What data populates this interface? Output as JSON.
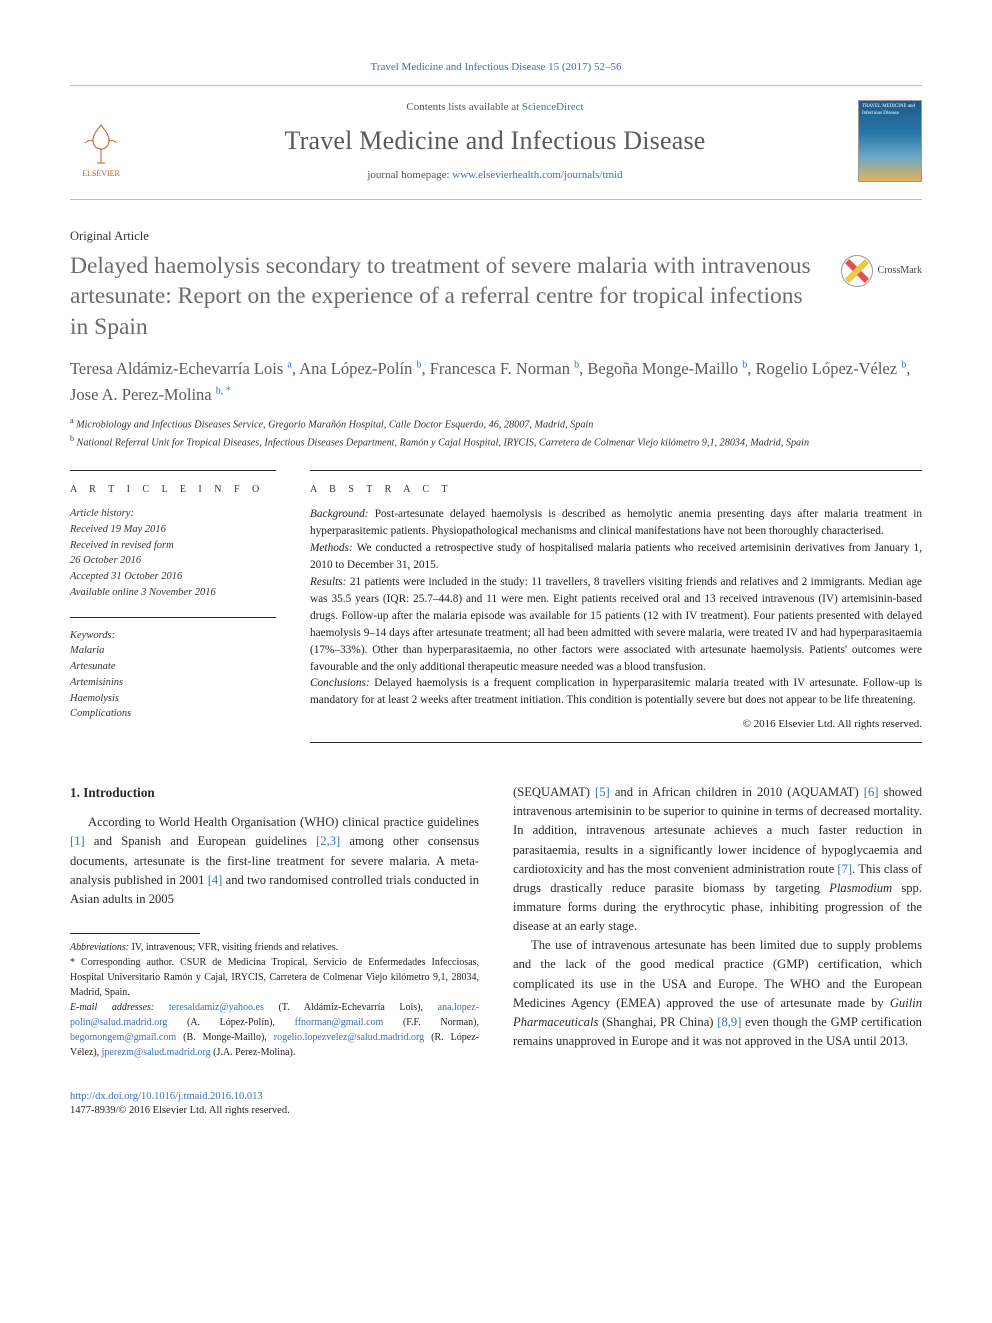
{
  "top_citation": "Travel Medicine and Infectious Disease 15 (2017) 52–56",
  "header": {
    "elsevier": "ELSEVIER",
    "contents_prefix": "Contents lists available at ",
    "contents_link": "ScienceDirect",
    "journal": "Travel Medicine and Infectious Disease",
    "homepage_prefix": "journal homepage: ",
    "homepage_link": "www.elsevierhealth.com/journals/tmid",
    "cover_text": "TRAVEL MEDICINE and Infectious Disease"
  },
  "article_type": "Original Article",
  "crossmark": "CrossMark",
  "title": "Delayed haemolysis secondary to treatment of severe malaria with intravenous artesunate: Report on the experience of a referral centre for tropical infections in Spain",
  "authors_html": "Teresa Aldámiz-Echevarría Lois <sup>a</sup>, Ana López-Polín <sup>b</sup>, Francesca F. Norman <sup>b</sup>, Begoña Monge-Maillo <sup>b</sup>, Rogelio López-Vélez <sup>b</sup>, Jose A. Perez-Molina <sup>b, *</sup>",
  "affiliations": {
    "a": "Microbiology and Infectious Diseases Service, Gregorio Marañón Hospital, Calle Doctor Esquerdo, 46, 28007, Madrid, Spain",
    "b": "National Referral Unit for Tropical Diseases, Infectious Diseases Department, Ramón y Cajal Hospital, IRYCIS, Carretera de Colmenar Viejo kilómetro 9,1, 28034, Madrid, Spain"
  },
  "article_info_head": "A R T I C L E   I N F O",
  "abstract_head": "A B S T R A C T",
  "history": {
    "hdr": "Article history:",
    "l1": "Received 19 May 2016",
    "l2": "Received in revised form",
    "l3": "26 October 2016",
    "l4": "Accepted 31 October 2016",
    "l5": "Available online 3 November 2016"
  },
  "keywords": {
    "hdr": "Keywords:",
    "k1": "Malaria",
    "k2": "Artesunate",
    "k3": "Artemisinins",
    "k4": "Haemolysis",
    "k5": "Complications"
  },
  "abstract": {
    "background_lbl": "Background: ",
    "background": "Post-artesunate delayed haemolysis is described as hemolytic anemia presenting days after malaria treatment in hyperparasitemic patients. Physiopathological mechanisms and clinical manifestations have not been thoroughly characterised.",
    "methods_lbl": "Methods: ",
    "methods": "We conducted a retrospective study of hospitalised malaria patients who received artemisinin derivatives from January 1, 2010 to December 31, 2015.",
    "results_lbl": "Results: ",
    "results": "21 patients were included in the study: 11 travellers, 8 travellers visiting friends and relatives and 2 immigrants. Median age was 35.5 years (IQR: 25.7–44.8) and 11 were men. Eight patients received oral and 13 received intravenous (IV) artemisinin-based drugs. Follow-up after the malaria episode was available for 15 patients (12 with IV treatment). Four patients presented with delayed haemolysis 9–14 days after artesunate treatment; all had been admitted with severe malaria, were treated IV and had hyperparasitaemia (17%–33%). Other than hyperparasitaemia, no other factors were associated with artesunate haemolysis. Patients' outcomes were favourable and the only additional therapeutic measure needed was a blood transfusion.",
    "conclusions_lbl": "Conclusions: ",
    "conclusions": "Delayed haemolysis is a frequent complication in hyperparasitemic malaria treated with IV artesunate. Follow-up is mandatory for at least 2 weeks after treatment initiation. This condition is potentially severe but does not appear to be life threatening.",
    "copyright": "© 2016 Elsevier Ltd. All rights reserved."
  },
  "intro_head": "1. Introduction",
  "intro_left": "According to World Health Organisation (WHO) clinical practice guidelines [1] and Spanish and European guidelines [2,3] among other consensus documents, artesunate is the first-line treatment for severe malaria. A meta-analysis published in 2001 [4] and two randomised controlled trials conducted in Asian adults in 2005",
  "intro_right_p1": "(SEQUAMAT) [5] and in African children in 2010 (AQUAMAT) [6] showed intravenous artemisinin to be superior to quinine in terms of decreased mortality. In addition, intravenous artesunate achieves a much faster reduction in parasitaemia, results in a significantly lower incidence of hypoglycaemia and cardiotoxicity and has the most convenient administration route [7]. This class of drugs drastically reduce parasite biomass by targeting Plasmodium spp. immature forms during the erythrocytic phase, inhibiting progression of the disease at an early stage.",
  "intro_right_p2": "The use of intravenous artesunate has been limited due to supply problems and the lack of the good medical practice (GMP) certification, which complicated its use in the USA and Europe. The WHO and the European Medicines Agency (EMEA) approved the use of artesunate made by Guilin Pharmaceuticals (Shanghai, PR China) [8,9] even though the GMP certification remains unapproved in Europe and it was not approved in the USA until 2013.",
  "footnotes": {
    "abbrev_lbl": "Abbreviations:",
    "abbrev": " IV, intravenous; VFR, visiting friends and relatives.",
    "corr_lbl": "* Corresponding author.",
    "corr": " CSUR de Medicina Tropical, Servicio de Enfermedades Infecciosas, Hospital Universitario Ramón y Cajal, IRYCIS, Carretera de Colmenar Viejo kilómetro 9,1, 28034, Madrid, Spain.",
    "emails_lbl": "E-mail addresses:",
    "e1": "teresaldamiz@yahoo.es",
    "n1": " (T. Aldámiz-Echevarría Lois), ",
    "e2": "ana.lopez-polin@salud.madrid.org",
    "n2": " (A. López-Polín), ",
    "e3": "ffnorman@gmail.com",
    "n3": " (F.F. Norman), ",
    "e4": "begomongem@gmail.com",
    "n4": " (B. Monge-Maillo), ",
    "e5": "rogelio.lopezvelez@salud.madrid.org",
    "n5": " (R. López-Vélez), ",
    "e6": "jperezm@salud.madrid.org",
    "n6": " (J.A. Perez-Molina)."
  },
  "doi_link": "http://dx.doi.org/10.1016/j.tmaid.2016.10.013",
  "issn": "1477-8939/© 2016 Elsevier Ltd. All rights reserved.",
  "colors": {
    "link": "#3b6fb8",
    "grey_title": "#6b6b6b",
    "rule": "#2a2a2a"
  }
}
